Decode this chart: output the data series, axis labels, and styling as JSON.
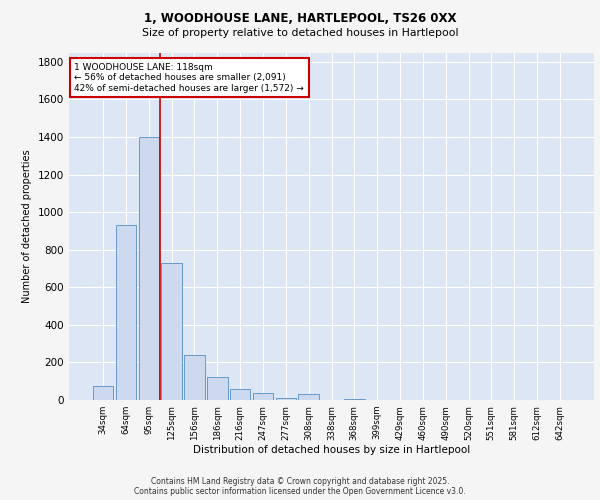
{
  "title_line1": "1, WOODHOUSE LANE, HARTLEPOOL, TS26 0XX",
  "title_line2": "Size of property relative to detached houses in Hartlepool",
  "xlabel": "Distribution of detached houses by size in Hartlepool",
  "ylabel": "Number of detached properties",
  "footer_line1": "Contains HM Land Registry data © Crown copyright and database right 2025.",
  "footer_line2": "Contains public sector information licensed under the Open Government Licence v3.0.",
  "categories": [
    "34sqm",
    "64sqm",
    "95sqm",
    "125sqm",
    "156sqm",
    "186sqm",
    "216sqm",
    "247sqm",
    "277sqm",
    "308sqm",
    "338sqm",
    "368sqm",
    "399sqm",
    "429sqm",
    "460sqm",
    "490sqm",
    "520sqm",
    "551sqm",
    "581sqm",
    "612sqm",
    "642sqm"
  ],
  "values": [
    75,
    930,
    1400,
    730,
    240,
    120,
    60,
    35,
    10,
    30,
    0,
    5,
    0,
    0,
    0,
    0,
    0,
    0,
    0,
    0,
    0
  ],
  "bar_color": "#ccd9ee",
  "bar_edge_color": "#6699cc",
  "annotation_line1": "1 WOODHOUSE LANE: 118sqm",
  "annotation_line2": "← 56% of detached houses are smaller (2,091)",
  "annotation_line3": "42% of semi-detached houses are larger (1,572) →",
  "annotation_box_color": "#ffffff",
  "annotation_box_edge": "#cc0000",
  "ylim": [
    0,
    1850
  ],
  "yticks": [
    0,
    200,
    400,
    600,
    800,
    1000,
    1200,
    1400,
    1600,
    1800
  ],
  "background_color": "#dde6f5",
  "grid_color": "#ffffff",
  "red_line_color": "#cc0000",
  "fig_bg_color": "#f5f5f5",
  "figsize": [
    6.0,
    5.0
  ],
  "dpi": 100
}
